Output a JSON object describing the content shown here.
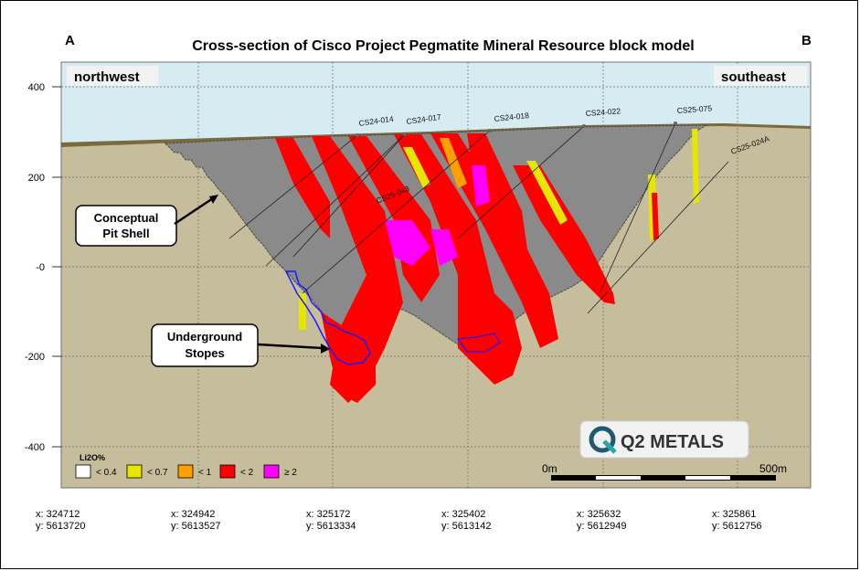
{
  "title": "Cross-section of Cisco Project Pegmatite Mineral Resource block model",
  "section_ends": {
    "left": "A",
    "right": "B"
  },
  "directions": {
    "left": "northwest",
    "right": "southeast"
  },
  "y_axis": {
    "ticks": [
      "400",
      "200",
      "-0",
      "-200",
      "-400"
    ],
    "values": [
      400,
      200,
      0,
      -200,
      -400
    ]
  },
  "drillholes": [
    "CS24-014",
    "CS24-017",
    "CS24-018",
    "CS24-022",
    "CS25-075",
    "CS25-024A",
    "CS25-043"
  ],
  "callouts": {
    "pit_shell": [
      "Conceptual",
      "Pit Shell"
    ],
    "stopes": [
      "Underground",
      "Stopes"
    ]
  },
  "legend": {
    "title": "Li2O%",
    "items": [
      {
        "label": "< 0.4",
        "color": "#ffffff"
      },
      {
        "label": "< 0.7",
        "color": "#e6e600"
      },
      {
        "label": "< 1",
        "color": "#ffa000"
      },
      {
        "label": "< 2",
        "color": "#ff0000"
      },
      {
        "label": "≥ 2",
        "color": "#ff00ff"
      }
    ]
  },
  "logo": {
    "text": "Q2 METALS"
  },
  "scale_bar": {
    "start": "0m",
    "end": "500m"
  },
  "easting_northing": [
    {
      "x": "x: 324712",
      "y": "y: 5613720"
    },
    {
      "x": "x: 324942",
      "y": "y: 5613527"
    },
    {
      "x": "x: 325172",
      "y": "y: 5613334"
    },
    {
      "x": "x: 325402",
      "y": "y: 5613142"
    },
    {
      "x": "x: 325632",
      "y": "y: 5612949"
    },
    {
      "x": "x: 325861",
      "y": "y: 5612756"
    }
  ],
  "colors": {
    "sky": "#d6ecf2",
    "ground": "#c6bd9c",
    "pit": "#8a8a8a",
    "overburden": "#7a6a3c",
    "high_grade": "#ff0000",
    "very_high_grade": "#ff00ff",
    "low_grade": "#e6e600",
    "mid_grade": "#ffa000",
    "stope_outline": "#1a1aff"
  }
}
